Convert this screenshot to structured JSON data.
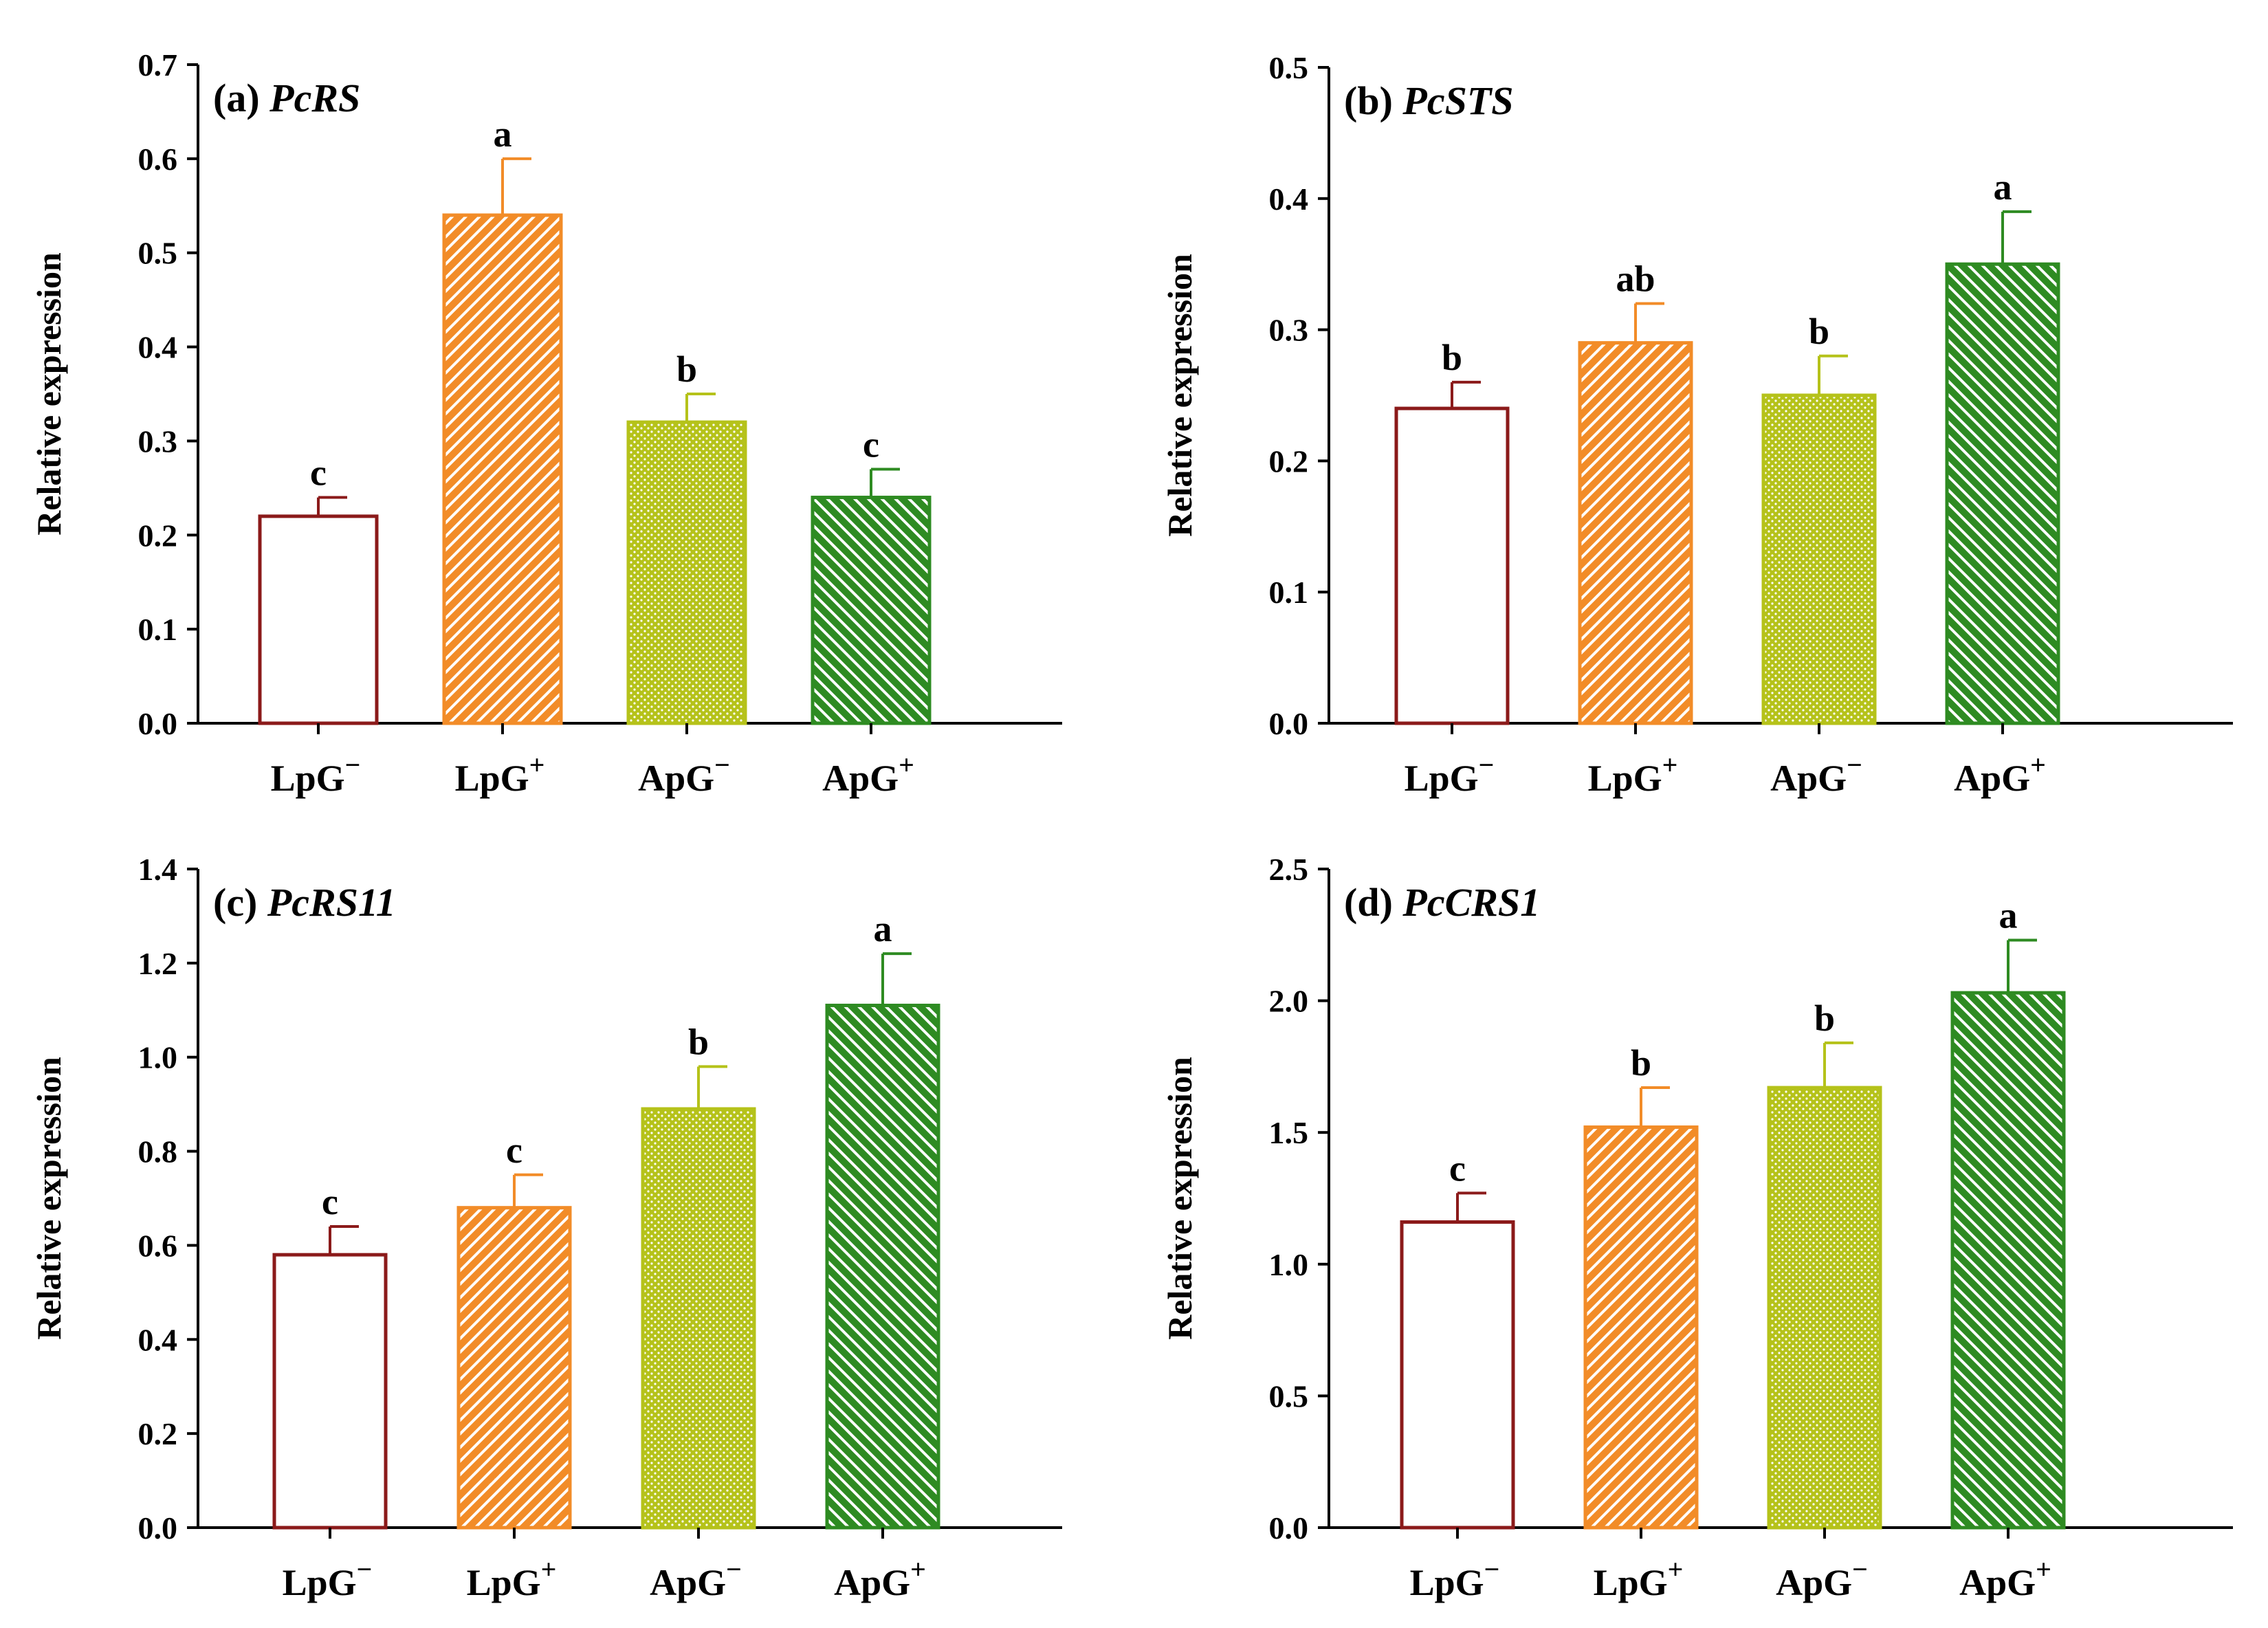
{
  "colors": {
    "LpG-": "#8b1a1a",
    "LpG+": "#f28c28",
    "ApG-": "#b5c21a",
    "ApG+": "#2e8b22"
  },
  "chart_data": [
    {
      "type": "bar",
      "panel": "(a)",
      "gene": "PcRS",
      "ylabel": "Relative expression",
      "ylim": [
        0,
        0.7
      ],
      "yticks": [
        "0.0",
        "0.1",
        "0.2",
        "0.3",
        "0.4",
        "0.5",
        "0.6",
        "0.7"
      ],
      "categories": [
        {
          "base": "LpG",
          "sup": "−"
        },
        {
          "base": "LpG",
          "sup": "+"
        },
        {
          "base": "ApG",
          "sup": "−"
        },
        {
          "base": "ApG",
          "sup": "+"
        }
      ],
      "values": [
        0.22,
        0.54,
        0.32,
        0.24
      ],
      "errors": [
        0.02,
        0.06,
        0.03,
        0.03
      ],
      "letters": [
        "c",
        "a",
        "b",
        "c"
      ]
    },
    {
      "type": "bar",
      "panel": "(b)",
      "gene": "PcSTS",
      "ylabel": "Relative expression",
      "ylim": [
        0,
        0.5
      ],
      "yticks": [
        "0.0",
        "0.1",
        "0.2",
        "0.3",
        "0.4",
        "0.5"
      ],
      "categories": [
        {
          "base": "LpG",
          "sup": "−"
        },
        {
          "base": "LpG",
          "sup": "+"
        },
        {
          "base": "ApG",
          "sup": "−"
        },
        {
          "base": "ApG",
          "sup": "+"
        }
      ],
      "values": [
        0.24,
        0.29,
        0.25,
        0.35
      ],
      "errors": [
        0.02,
        0.03,
        0.03,
        0.04
      ],
      "letters": [
        "b",
        "ab",
        "b",
        "a"
      ]
    },
    {
      "type": "bar",
      "panel": "(c)",
      "gene": "PcRS11",
      "ylabel": "Relative expression",
      "ylim": [
        0,
        1.4
      ],
      "yticks": [
        "0.0",
        "0.2",
        "0.4",
        "0.6",
        "0.8",
        "1.0",
        "1.2",
        "1.4"
      ],
      "categories": [
        {
          "base": "LpG",
          "sup": "−"
        },
        {
          "base": "LpG",
          "sup": "+"
        },
        {
          "base": "ApG",
          "sup": "−"
        },
        {
          "base": "ApG",
          "sup": "+"
        }
      ],
      "values": [
        0.58,
        0.68,
        0.89,
        1.11
      ],
      "errors": [
        0.06,
        0.07,
        0.09,
        0.11
      ],
      "letters": [
        "c",
        "c",
        "b",
        "a"
      ]
    },
    {
      "type": "bar",
      "panel": "(d)",
      "gene": "PcCRS1",
      "ylabel": "Relative expression",
      "ylim": [
        0,
        2.5
      ],
      "yticks": [
        "0.0",
        "0.5",
        "1.0",
        "1.5",
        "2.0",
        "2.5"
      ],
      "categories": [
        {
          "base": "LpG",
          "sup": "−"
        },
        {
          "base": "LpG",
          "sup": "+"
        },
        {
          "base": "ApG",
          "sup": "−"
        },
        {
          "base": "ApG",
          "sup": "+"
        }
      ],
      "values": [
        1.16,
        1.52,
        1.67,
        2.03
      ],
      "errors": [
        0.11,
        0.15,
        0.17,
        0.2
      ],
      "letters": [
        "c",
        "b",
        "b",
        "a"
      ]
    }
  ]
}
